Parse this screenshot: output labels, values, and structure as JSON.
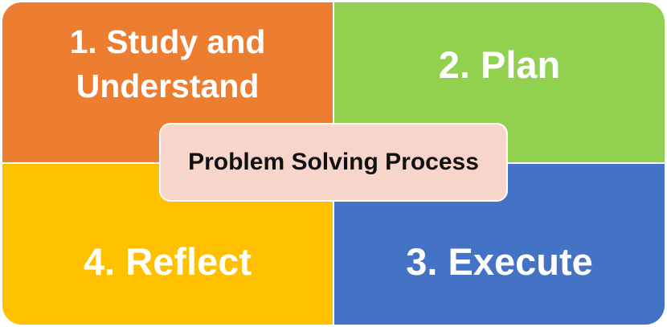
{
  "quadrants": {
    "top_left": {
      "label": "1. Study and Understand",
      "color": "#ed7d31"
    },
    "top_right": {
      "label": "2. Plan",
      "color": "#92d050"
    },
    "bottom_right": {
      "label": "3. Execute",
      "color": "#4472c4"
    },
    "bottom_left": {
      "label": "4. Reflect",
      "color": "#ffc000"
    }
  },
  "center": {
    "label": "Problem Solving Process",
    "color": "#f8d5ca"
  }
}
